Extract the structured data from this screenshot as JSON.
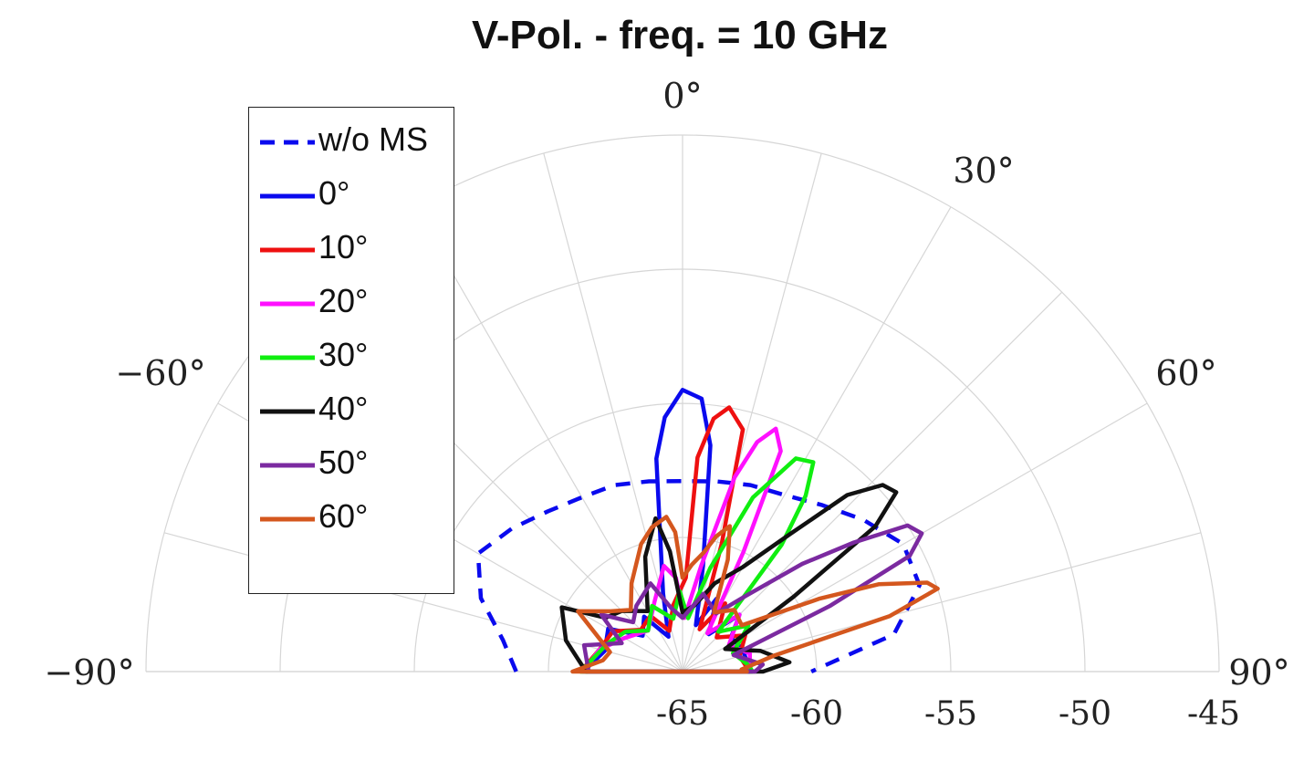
{
  "title": "V-Pol. - freq. = 10 GHz",
  "chart_data": {
    "type": "line",
    "projection": "polar-half",
    "title": "V-Pol. - freq. = 10 GHz",
    "theta_ticks": [
      {
        "deg": 0,
        "label": "0°"
      },
      {
        "deg": 30,
        "label": "30°"
      },
      {
        "deg": -60,
        "label": "−60°"
      },
      {
        "deg": 60,
        "label": "60°"
      },
      {
        "deg": -90,
        "label": "−90°"
      },
      {
        "deg": 90,
        "label": "90°"
      }
    ],
    "r_ticks": [
      "-65",
      "-60",
      "-55",
      "-50",
      "-45"
    ],
    "r_range": [
      -65,
      -45
    ],
    "grid": true,
    "legend_position": "top-left",
    "series": [
      {
        "name": "w/o MS",
        "color": "#0a0aee",
        "dash": "dashed",
        "points": [
          [
            -90,
            -58.8
          ],
          [
            -80,
            -58.2
          ],
          [
            -70,
            -57.0
          ],
          [
            -60,
            -56.2
          ],
          [
            -50,
            -56.7
          ],
          [
            -40,
            -57.2
          ],
          [
            -30,
            -57.5
          ],
          [
            -20,
            -57.6
          ],
          [
            -10,
            -57.8
          ],
          [
            0,
            -57.9
          ],
          [
            10,
            -57.8
          ],
          [
            20,
            -57.6
          ],
          [
            30,
            -57.4
          ],
          [
            40,
            -56.9
          ],
          [
            50,
            -56.2
          ],
          [
            60,
            -55.5
          ],
          [
            70,
            -55.6
          ],
          [
            80,
            -57.0
          ],
          [
            90,
            -60.2
          ]
        ]
      },
      {
        "name": "0°",
        "color": "#0a0aee",
        "dash": "solid",
        "points": [
          [
            -90,
            -61.3
          ],
          [
            -75,
            -62.0
          ],
          [
            -60,
            -61.8
          ],
          [
            -48,
            -63.0
          ],
          [
            -35,
            -62.5
          ],
          [
            -22,
            -63.6
          ],
          [
            -14,
            -62.0
          ],
          [
            -7,
            -57.0
          ],
          [
            -4,
            -55.5
          ],
          [
            0,
            -54.5
          ],
          [
            4,
            -54.8
          ],
          [
            7,
            -56.5
          ],
          [
            11,
            -61.0
          ],
          [
            16,
            -63.2
          ],
          [
            25,
            -62.0
          ],
          [
            35,
            -63.3
          ],
          [
            45,
            -62.0
          ],
          [
            55,
            -62.8
          ],
          [
            70,
            -62.6
          ],
          [
            90,
            -62.5
          ]
        ]
      },
      {
        "name": "10°",
        "color": "#ee1010",
        "dash": "solid",
        "points": [
          [
            -90,
            -61.2
          ],
          [
            -75,
            -61.8
          ],
          [
            -60,
            -62.0
          ],
          [
            -45,
            -62.8
          ],
          [
            -30,
            -62.6
          ],
          [
            -18,
            -63.4
          ],
          [
            -8,
            -62.5
          ],
          [
            2,
            -61.5
          ],
          [
            4,
            -57.0
          ],
          [
            7,
            -55.5
          ],
          [
            10,
            -55.0
          ],
          [
            14,
            -55.7
          ],
          [
            17,
            -60.0
          ],
          [
            22,
            -63.3
          ],
          [
            32,
            -62.0
          ],
          [
            45,
            -63.2
          ],
          [
            60,
            -62.3
          ],
          [
            75,
            -62.8
          ],
          [
            90,
            -62.5
          ]
        ]
      },
      {
        "name": "20°",
        "color": "#ff10ff",
        "dash": "solid",
        "points": [
          [
            -90,
            -61.3
          ],
          [
            -75,
            -61.8
          ],
          [
            -60,
            -62.5
          ],
          [
            -40,
            -63.0
          ],
          [
            -22,
            -62.2
          ],
          [
            -10,
            -61.0
          ],
          [
            -4,
            -61.5
          ],
          [
            2,
            -63.0
          ],
          [
            10,
            -61.0
          ],
          [
            15,
            -57.5
          ],
          [
            18,
            -56.0
          ],
          [
            21,
            -55.3
          ],
          [
            24,
            -56.0
          ],
          [
            27,
            -60.0
          ],
          [
            33,
            -63.3
          ],
          [
            45,
            -62.0
          ],
          [
            60,
            -63.0
          ],
          [
            75,
            -62.4
          ],
          [
            90,
            -62.5
          ]
        ]
      },
      {
        "name": "30°",
        "color": "#10ee10",
        "dash": "solid",
        "points": [
          [
            -90,
            -61.2
          ],
          [
            -70,
            -62.0
          ],
          [
            -55,
            -62.4
          ],
          [
            -40,
            -63.0
          ],
          [
            -25,
            -62.3
          ],
          [
            -10,
            -63.0
          ],
          [
            -2,
            -62.0
          ],
          [
            6,
            -63.0
          ],
          [
            15,
            -61.0
          ],
          [
            22,
            -58.0
          ],
          [
            28,
            -56.0
          ],
          [
            32,
            -55.8
          ],
          [
            35,
            -57.0
          ],
          [
            38,
            -59.0
          ],
          [
            42,
            -63.0
          ],
          [
            55,
            -62.0
          ],
          [
            70,
            -63.0
          ],
          [
            85,
            -62.5
          ],
          [
            90,
            -62.4
          ]
        ]
      },
      {
        "name": "40°",
        "color": "#111111",
        "dash": "solid",
        "points": [
          [
            -90,
            -61.4
          ],
          [
            -75,
            -60.5
          ],
          [
            -62,
            -59.9
          ],
          [
            -55,
            -61.5
          ],
          [
            -45,
            -61.8
          ],
          [
            -30,
            -62.4
          ],
          [
            -18,
            -60.5
          ],
          [
            -10,
            -59.2
          ],
          [
            -6,
            -60.5
          ],
          [
            0,
            -62.8
          ],
          [
            10,
            -62.5
          ],
          [
            20,
            -61.5
          ],
          [
            30,
            -60.5
          ],
          [
            38,
            -58.5
          ],
          [
            43,
            -56.0
          ],
          [
            47,
            -54.8
          ],
          [
            50,
            -54.6
          ],
          [
            53,
            -56.0
          ],
          [
            56,
            -60.0
          ],
          [
            62,
            -63.2
          ],
          [
            75,
            -62.0
          ],
          [
            85,
            -61.0
          ],
          [
            90,
            -62.0
          ]
        ]
      },
      {
        "name": "50°",
        "color": "#7b2aa0",
        "dash": "solid",
        "points": [
          [
            -90,
            -61.5
          ],
          [
            -75,
            -61.2
          ],
          [
            -65,
            -62.5
          ],
          [
            -55,
            -61.3
          ],
          [
            -45,
            -62.4
          ],
          [
            -35,
            -62.0
          ],
          [
            -20,
            -61.5
          ],
          [
            -10,
            -62.6
          ],
          [
            0,
            -63.0
          ],
          [
            15,
            -62.0
          ],
          [
            30,
            -62.5
          ],
          [
            40,
            -61.3
          ],
          [
            48,
            -59.0
          ],
          [
            53,
            -57.0
          ],
          [
            57,
            -55.0
          ],
          [
            60,
            -54.7
          ],
          [
            63,
            -55.5
          ],
          [
            66,
            -59.0
          ],
          [
            72,
            -63.0
          ],
          [
            85,
            -62.0
          ],
          [
            90,
            -62.3
          ]
        ]
      },
      {
        "name": "60°",
        "color": "#d4571e",
        "dash": "solid",
        "points": [
          [
            -90,
            -60.9
          ],
          [
            -82,
            -62.0
          ],
          [
            -75,
            -62.2
          ],
          [
            -60,
            -60.5
          ],
          [
            -50,
            -61.5
          ],
          [
            -40,
            -62.0
          ],
          [
            -30,
            -61.2
          ],
          [
            -18,
            -60.0
          ],
          [
            -12,
            -59.5
          ],
          [
            -6,
            -59.2
          ],
          [
            -3,
            -59.8
          ],
          [
            0,
            -61.5
          ],
          [
            5,
            -61.0
          ],
          [
            10,
            -60.5
          ],
          [
            14,
            -59.8
          ],
          [
            18,
            -59.3
          ],
          [
            22,
            -60.5
          ],
          [
            28,
            -62.5
          ],
          [
            40,
            -62.0
          ],
          [
            52,
            -62.2
          ],
          [
            62,
            -59.2
          ],
          [
            66,
            -57.0
          ],
          [
            70,
            -55.3
          ],
          [
            72,
            -55.0
          ],
          [
            75,
            -57.0
          ],
          [
            80,
            -61.5
          ],
          [
            88,
            -62.8
          ],
          [
            90,
            -62.6
          ]
        ]
      }
    ]
  }
}
